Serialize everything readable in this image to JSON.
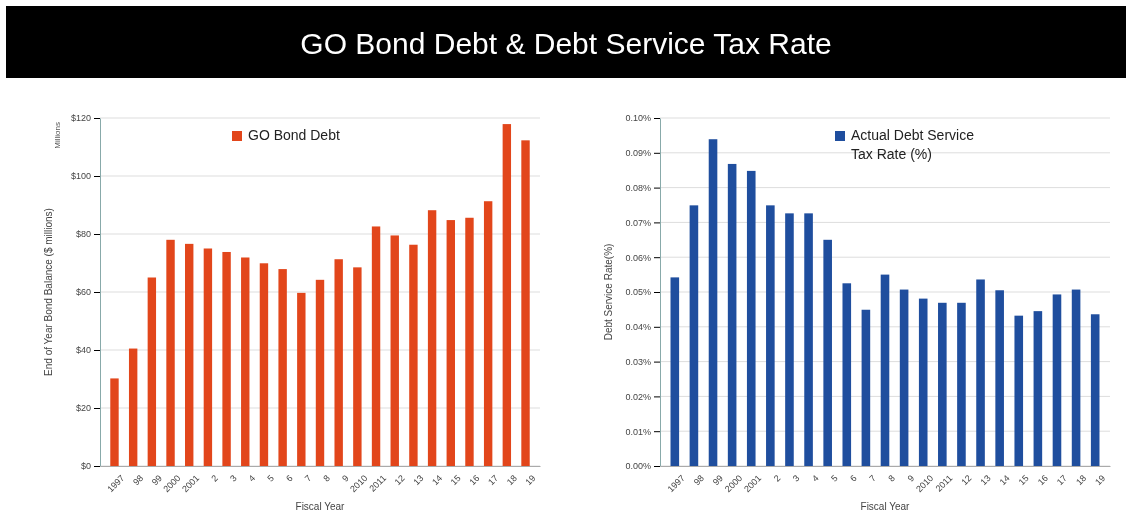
{
  "chart_data": [
    {
      "type": "bar",
      "title": "GO Bond Debt & Debt Service Tax Rate",
      "xlabel": "Fiscal Year",
      "ylabel": "End of Year Bond Balance ($ millions)",
      "annotations": [
        "Millions"
      ],
      "categories": [
        "1997",
        "98",
        "99",
        "2000",
        "2001",
        "2",
        "3",
        "4",
        "5",
        "6",
        "7",
        "8",
        "9",
        "2010",
        "2011",
        "12",
        "13",
        "14",
        "15",
        "16",
        "17",
        "18",
        "19"
      ],
      "series": [
        {
          "name": "GO Bond Debt",
          "color": "#e2461b",
          "values": [
            30.2,
            40.5,
            65,
            78,
            76.6,
            75,
            73.8,
            71.9,
            69.9,
            67.9,
            59.7,
            64.2,
            71.3,
            68.5,
            82.6,
            79.5,
            76.3,
            88.2,
            84.8,
            85.6,
            91.3,
            117.9,
            112.3
          ]
        }
      ],
      "ylim": [
        0,
        120
      ],
      "yticks": [
        {
          "value": 0,
          "label": "$0"
        },
        {
          "value": 20,
          "label": "$20"
        },
        {
          "value": 40,
          "label": "$40"
        },
        {
          "value": 60,
          "label": "$60"
        },
        {
          "value": 80,
          "label": "$80"
        },
        {
          "value": 100,
          "label": "$100"
        },
        {
          "value": 120,
          "label": "$120"
        }
      ],
      "grid": "y",
      "legend": "top"
    },
    {
      "type": "bar",
      "xlabel": "Fiscal Year",
      "ylabel": "Debt Service Rate(%)",
      "categories": [
        "1997",
        "98",
        "99",
        "2000",
        "2001",
        "2",
        "3",
        "4",
        "5",
        "6",
        "7",
        "8",
        "9",
        "2010",
        "2011",
        "12",
        "13",
        "14",
        "15",
        "16",
        "17",
        "18",
        "19"
      ],
      "series": [
        {
          "name": "Actual Debt Service Tax Rate (%)",
          "color": "#1f4e9e",
          "values": [
            0.0542,
            0.0749,
            0.0939,
            0.0868,
            0.0848,
            0.0749,
            0.0726,
            0.0726,
            0.065,
            0.0525,
            0.0449,
            0.055,
            0.0507,
            0.0481,
            0.0469,
            0.0469,
            0.0536,
            0.0505,
            0.0432,
            0.0445,
            0.0493,
            0.0507,
            0.0436
          ]
        }
      ],
      "ylim": [
        0,
        0.1
      ],
      "yticks": [
        {
          "value": 0,
          "label": "0.00%"
        },
        {
          "value": 0.01,
          "label": "0.01%"
        },
        {
          "value": 0.02,
          "label": "0.02%"
        },
        {
          "value": 0.03,
          "label": "0.03%"
        },
        {
          "value": 0.04,
          "label": "0.04%"
        },
        {
          "value": 0.05,
          "label": "0.05%"
        },
        {
          "value": 0.06,
          "label": "0.06%"
        },
        {
          "value": 0.07,
          "label": "0.07%"
        },
        {
          "value": 0.08,
          "label": "0.08%"
        },
        {
          "value": 0.09,
          "label": "0.09%"
        },
        {
          "value": 0.1,
          "label": "0.10%"
        }
      ],
      "grid": "y",
      "legend": "top"
    }
  ]
}
